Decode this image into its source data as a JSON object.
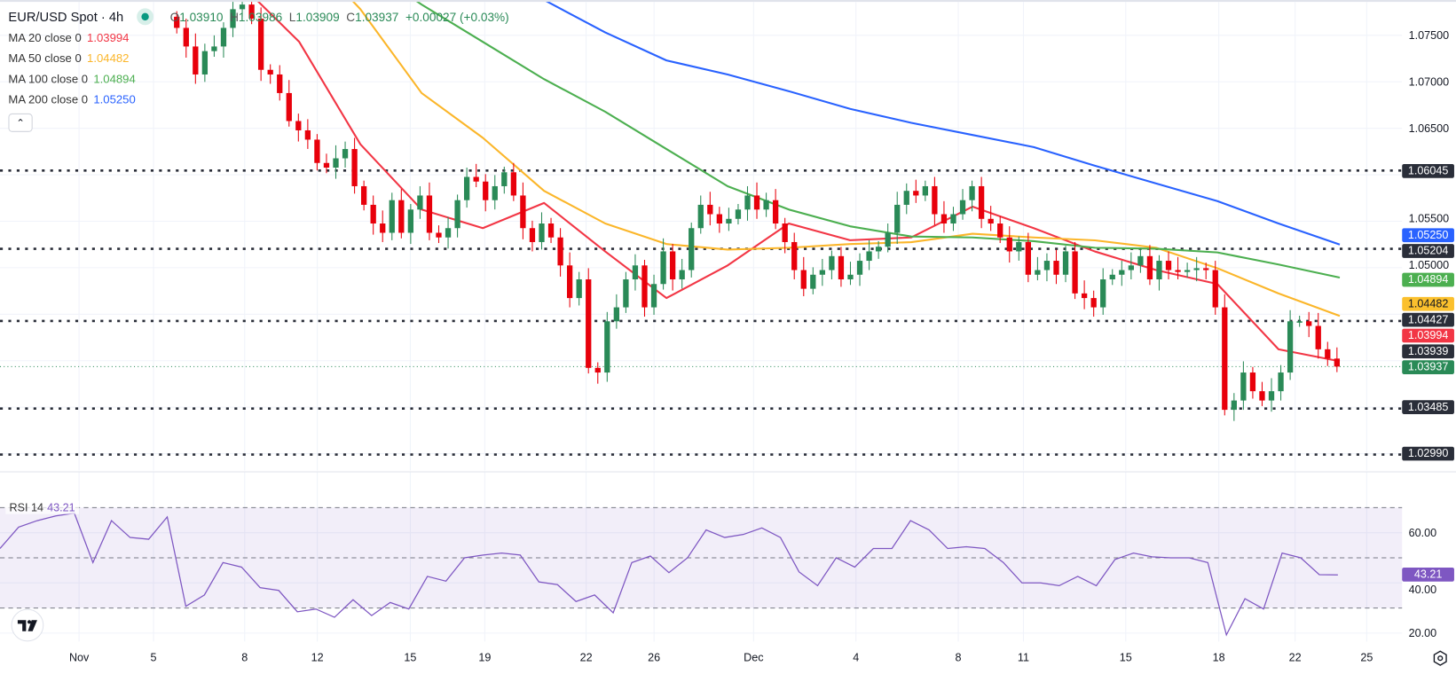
{
  "header": {
    "symbol": "EUR/USD Spot · 4h",
    "ohlc": {
      "o_label": "O",
      "o": "1.03910",
      "h_label": "H",
      "h": "1.03986",
      "l_label": "L",
      "l": "1.03909",
      "c_label": "C",
      "c": "1.03937",
      "change": "+0.00027 (+0.03%)"
    },
    "collapse_icon": "chevron-up-icon"
  },
  "indicators": [
    {
      "label": "MA 20 close 0",
      "value": "1.03994",
      "color": "#f23645"
    },
    {
      "label": "MA 50 close 0",
      "value": "1.04482",
      "color": "#fbb62a"
    },
    {
      "label": "MA 100 close 0",
      "value": "1.04894",
      "color": "#4caf50"
    },
    {
      "label": "MA 200 close 0",
      "value": "1.05250",
      "color": "#2962ff"
    }
  ],
  "price_axis": {
    "ticks": [
      "1.07500",
      "1.07000",
      "1.06500",
      "1.05500",
      "1.05000"
    ],
    "badges": [
      {
        "text": "1.06045",
        "bg": "#2a2e39",
        "fg": "#ffffff"
      },
      {
        "text": "1.05250",
        "bg": "#2962ff",
        "fg": "#ffffff"
      },
      {
        "text": "1.05204",
        "bg": "#2a2e39",
        "fg": "#ffffff"
      },
      {
        "text": "1.04894",
        "bg": "#4caf50",
        "fg": "#ffffff"
      },
      {
        "text": "1.04482",
        "bg": "#fbc02d",
        "fg": "#131722"
      },
      {
        "text": "1.04427",
        "bg": "#2a2e39",
        "fg": "#ffffff"
      },
      {
        "text": "1.03994",
        "bg": "#f23645",
        "fg": "#ffffff"
      },
      {
        "text": "1.03939",
        "bg": "#2a2e39",
        "fg": "#ffffff"
      },
      {
        "text": "1.03937",
        "bg": "#2a8a57",
        "fg": "#ffffff"
      },
      {
        "text": "1.03485",
        "bg": "#2a2e39",
        "fg": "#ffffff"
      },
      {
        "text": "1.02990",
        "bg": "#2a2e39",
        "fg": "#ffffff"
      }
    ]
  },
  "x_axis": {
    "labels": [
      "Nov",
      "5",
      "8",
      "12",
      "15",
      "19",
      "22",
      "26",
      "Dec",
      "4",
      "8",
      "11",
      "15",
      "18",
      "22",
      "25"
    ]
  },
  "rsi": {
    "label": "RSI 14",
    "value": "43.21",
    "color": "#7e57c2",
    "ticks": [
      "60.00",
      "40.00",
      "20.00"
    ],
    "bands": [
      70,
      50,
      30
    ]
  },
  "colors": {
    "up": "#2a8a57",
    "down": "#e8000b",
    "level": "#2a2e39",
    "last_price": "#2a8a57"
  },
  "chart_data": {
    "type": "candlestick",
    "title": "EUR/USD Spot · 4h",
    "ylim": [
      1.0282,
      1.0788
    ],
    "grid": true,
    "first_open": 1.077,
    "closes": [
      1.0758,
      1.0738,
      1.07079,
      1.0733,
      1.0738,
      1.0758,
      1.07781,
      1.07831,
      1.0768,
      1.07129,
      1.07079,
      1.06879,
      1.06578,
      1.06478,
      1.06378,
      1.06127,
      1.06077,
      1.06177,
      1.06277,
      1.05877,
      1.05677,
      1.05476,
      1.05376,
      1.05727,
      1.05376,
      1.05626,
      1.05777,
      1.05376,
      1.05326,
      1.05426,
      1.05727,
      1.05977,
      1.05927,
      1.05727,
      1.05877,
      1.06027,
      1.05777,
      1.05426,
      1.05276,
      1.05476,
      1.05326,
      1.05025,
      1.04674,
      1.04875,
      1.03923,
      1.03873,
      1.04424,
      1.04574,
      1.04875,
      1.05025,
      1.04574,
      1.04825,
      1.05176,
      1.04875,
      1.04975,
      1.05426,
      1.05677,
      1.05576,
      1.05476,
      1.05526,
      1.05626,
      1.05777,
      1.05626,
      1.05727,
      1.05476,
      1.05276,
      1.04975,
      1.04774,
      1.04925,
      1.04975,
      1.05125,
      1.04875,
      1.04925,
      1.05075,
      1.05176,
      1.05226,
      1.05376,
      1.05677,
      1.05827,
      1.05777,
      1.05877,
      1.05576,
      1.05476,
      1.05576,
      1.05727,
      1.05877,
      1.05526,
      1.05476,
      1.05326,
      1.05176,
      1.05276,
      1.04925,
      1.04975,
      1.05075,
      1.04925,
      1.05176,
      1.04724,
      1.04674,
      1.04574,
      1.04875,
      1.04925,
      1.04975,
      1.05025,
      1.05125,
      1.04875,
      1.05075,
      1.04975,
      1.04955,
      1.04975,
      1.04995,
      1.04975,
      1.04574,
      1.03472,
      1.03572,
      1.03873,
      1.03672,
      1.03572,
      1.03672,
      1.03873,
      1.04424,
      1.04424,
      1.04374,
      1.04123,
      1.04023,
      1.03937
    ],
    "moving_averages": [
      {
        "name": "MA 20",
        "color": "#f23645",
        "values": [
          1.08378,
          1.08078,
          1.0743,
          1.06328,
          1.05626,
          1.05426,
          1.05697,
          1.05175,
          1.04674,
          1.05025,
          1.05476,
          1.05296,
          1.05326,
          1.05657,
          1.05426,
          1.05175,
          1.04975,
          1.04825,
          1.04123,
          1.03994
        ]
      },
      {
        "name": "MA 50",
        "color": "#fbb62a",
        "values": [
          1.09384,
          1.08983,
          1.08482,
          1.07781,
          1.06879,
          1.06398,
          1.05827,
          1.05476,
          1.05255,
          1.05195,
          1.05215,
          1.05255,
          1.05275,
          1.05366,
          1.05326,
          1.05295,
          1.05215,
          1.04995,
          1.04724,
          1.04482
        ]
      },
      {
        "name": "MA 100",
        "color": "#4caf50",
        "values": [
          1.09184,
          1.08983,
          1.08683,
          1.08282,
          1.07831,
          1.0743,
          1.07029,
          1.06678,
          1.06277,
          1.05877,
          1.05626,
          1.05446,
          1.05336,
          1.05326,
          1.05286,
          1.05215,
          1.05205,
          1.05165,
          1.05035,
          1.04894
        ]
      },
      {
        "name": "MA 200",
        "color": "#2962ff",
        "values": [
          1.08983,
          1.08833,
          1.08683,
          1.08482,
          1.08332,
          1.08131,
          1.07881,
          1.07531,
          1.0723,
          1.07079,
          1.06899,
          1.06709,
          1.06559,
          1.06428,
          1.06298,
          1.06097,
          1.05907,
          1.05717,
          1.05476,
          1.0525
        ]
      }
    ],
    "levels": [
      1.06045,
      1.05204,
      1.04427,
      1.03485,
      1.0299
    ],
    "last_price": 1.03937,
    "price_gridlines": [
      1.075,
      1.07,
      1.065,
      1.06,
      1.055,
      1.05,
      1.045,
      1.04,
      1.035,
      1.03
    ],
    "rsi_ylim": [
      14,
      85
    ],
    "rsi_values": [
      53.7,
      62.2,
      64.8,
      66.7,
      67.8,
      48.1,
      64.8,
      58.1,
      57.4,
      66.3,
      30.7,
      35.2,
      48.1,
      46.3,
      38.1,
      37.0,
      28.5,
      29.6,
      26.3,
      33.3,
      27.0,
      32.2,
      29.6,
      42.6,
      40.7,
      50.0,
      51.1,
      51.9,
      51.1,
      40.4,
      39.3,
      32.6,
      35.2,
      28.1,
      48.1,
      50.7,
      44.1,
      50.0,
      61.1,
      58.1,
      59.3,
      61.9,
      58.1,
      44.4,
      38.9,
      50.0,
      46.3,
      53.7,
      53.7,
      64.8,
      61.1,
      53.7,
      54.4,
      53.7,
      48.1,
      40.0,
      40.0,
      38.9,
      42.6,
      38.9,
      49.3,
      51.9,
      50.4,
      50.0,
      50.0,
      48.1,
      19.3,
      33.7,
      29.6,
      51.9,
      50.0,
      43.3,
      43.21
    ]
  }
}
